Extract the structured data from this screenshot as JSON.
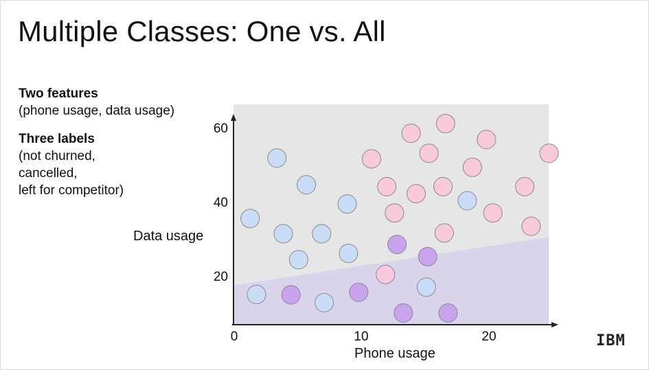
{
  "slide": {
    "title": "Multiple Classes: One vs. All",
    "notes": {
      "features_heading": "Two features",
      "features_detail": "(phone usage, data usage)",
      "labels_heading": "Three labels",
      "labels_lines": [
        "(not churned,",
        "cancelled,",
        "left for competitor)"
      ]
    },
    "logo_text": "IBM"
  },
  "chart_data": {
    "type": "scatter",
    "xlabel": "Phone usage",
    "ylabel": "Data usage",
    "xticks": [
      0,
      10,
      20
    ],
    "yticks": [
      20,
      40,
      60
    ],
    "xlim": [
      0,
      25
    ],
    "ylim": [
      5,
      65
    ],
    "colors": {
      "blue": "#c9dcf8",
      "pink": "#f9c9dc",
      "purple": "#c9a3ee",
      "region_upper": "#e6e6e6",
      "region_lower": "#d9d3ec"
    },
    "decision_boundary": [
      [
        0,
        17.5
      ],
      [
        25,
        30.5
      ]
    ],
    "series": [
      {
        "points": [
          [
            1.3,
            35.5
          ],
          [
            3.4,
            51.8
          ],
          [
            5.7,
            44.6
          ],
          [
            3.9,
            31.4
          ],
          [
            6.9,
            31.4
          ],
          [
            8.9,
            39.4
          ],
          [
            5.1,
            24.4
          ],
          [
            9.0,
            26.1
          ],
          [
            1.8,
            15.0
          ],
          [
            7.1,
            12.8
          ],
          [
            15.1,
            17.0
          ],
          [
            18.3,
            40.3
          ]
        ]
      },
      {
        "points": [
          [
            10.8,
            51.6
          ],
          [
            13.9,
            58.5
          ],
          [
            16.6,
            61.1
          ],
          [
            15.3,
            53.1
          ],
          [
            19.8,
            56.8
          ],
          [
            18.7,
            49.3
          ],
          [
            24.7,
            53.1
          ],
          [
            12.0,
            44.1
          ],
          [
            14.3,
            42.2
          ],
          [
            16.4,
            44.1
          ],
          [
            12.6,
            37.0
          ],
          [
            20.3,
            37.0
          ],
          [
            22.8,
            44.1
          ],
          [
            23.3,
            33.4
          ],
          [
            16.5,
            31.6
          ],
          [
            11.9,
            20.4
          ]
        ]
      },
      {
        "points": [
          [
            4.5,
            14.9
          ],
          [
            9.8,
            15.6
          ],
          [
            12.8,
            28.5
          ],
          [
            15.2,
            25.2
          ],
          [
            13.3,
            10.0
          ],
          [
            16.8,
            10.0
          ]
        ]
      }
    ]
  }
}
